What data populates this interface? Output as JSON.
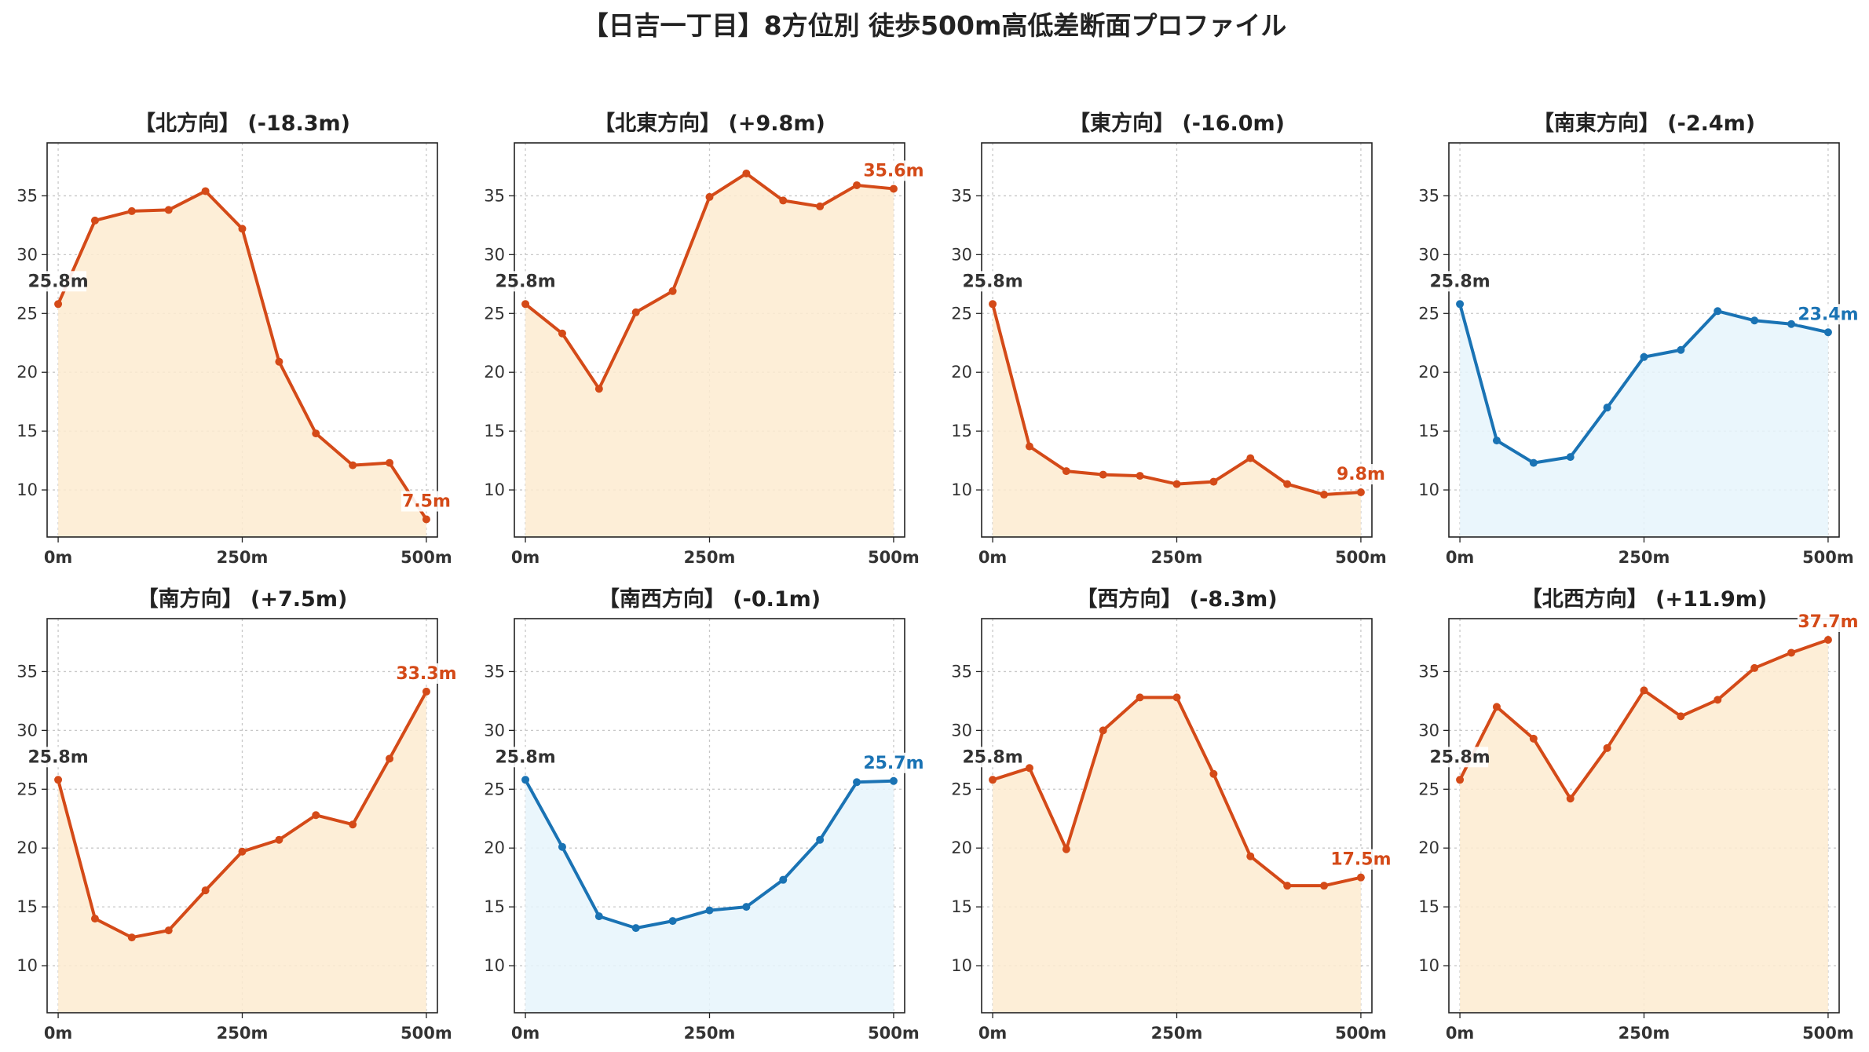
{
  "title": "【日吉一丁目】8方位別 徒歩500m高低差断面プロファイル",
  "colors": {
    "up_line": "#d44a18",
    "up_fill": "#fdebd0",
    "down_line": "#1a73b4",
    "down_fill": "#e6f4fb",
    "start_label": "#333333"
  },
  "chart_data": [
    {
      "type": "area",
      "title": "【北方向】 (-18.3m)",
      "x": [
        0,
        50,
        100,
        150,
        200,
        250,
        300,
        350,
        400,
        450,
        500
      ],
      "values": [
        25.8,
        32.9,
        33.7,
        33.8,
        35.4,
        32.2,
        20.9,
        14.8,
        12.1,
        12.3,
        7.5
      ],
      "trend": "up",
      "start_label": "25.8m",
      "end_label": "7.5m",
      "xticks": [
        "0m",
        "250m",
        "500m"
      ],
      "yticks": [
        10,
        15,
        20,
        25,
        30,
        35
      ],
      "ylim": [
        6,
        39.5
      ],
      "grid": true
    },
    {
      "type": "area",
      "title": "【北東方向】 (+9.8m)",
      "x": [
        0,
        50,
        100,
        150,
        200,
        250,
        300,
        350,
        400,
        450,
        500
      ],
      "values": [
        25.8,
        23.3,
        18.6,
        25.1,
        26.9,
        34.9,
        36.9,
        34.6,
        34.1,
        35.9,
        35.6
      ],
      "trend": "up",
      "start_label": "25.8m",
      "end_label": "35.6m",
      "xticks": [
        "0m",
        "250m",
        "500m"
      ],
      "yticks": [
        10,
        15,
        20,
        25,
        30,
        35
      ],
      "ylim": [
        6,
        39.5
      ],
      "grid": true
    },
    {
      "type": "area",
      "title": "【東方向】 (-16.0m)",
      "x": [
        0,
        50,
        100,
        150,
        200,
        250,
        300,
        350,
        400,
        450,
        500
      ],
      "values": [
        25.8,
        13.7,
        11.6,
        11.3,
        11.2,
        10.5,
        10.7,
        12.7,
        10.5,
        9.6,
        9.8
      ],
      "trend": "up",
      "start_label": "25.8m",
      "end_label": "9.8m",
      "xticks": [
        "0m",
        "250m",
        "500m"
      ],
      "yticks": [
        10,
        15,
        20,
        25,
        30,
        35
      ],
      "ylim": [
        6,
        39.5
      ],
      "grid": true
    },
    {
      "type": "area",
      "title": "【南東方向】 (-2.4m)",
      "x": [
        0,
        50,
        100,
        150,
        200,
        250,
        300,
        350,
        400,
        450,
        500
      ],
      "values": [
        25.8,
        14.2,
        12.3,
        12.8,
        17.0,
        21.3,
        21.9,
        25.2,
        24.4,
        24.1,
        23.4
      ],
      "trend": "down",
      "start_label": "25.8m",
      "end_label": "23.4m",
      "xticks": [
        "0m",
        "250m",
        "500m"
      ],
      "yticks": [
        10,
        15,
        20,
        25,
        30,
        35
      ],
      "ylim": [
        6,
        39.5
      ],
      "grid": true
    },
    {
      "type": "area",
      "title": "【南方向】 (+7.5m)",
      "x": [
        0,
        50,
        100,
        150,
        200,
        250,
        300,
        350,
        400,
        450,
        500
      ],
      "values": [
        25.8,
        14.0,
        12.4,
        13.0,
        16.4,
        19.7,
        20.7,
        22.8,
        22.0,
        27.6,
        33.3
      ],
      "trend": "up",
      "start_label": "25.8m",
      "end_label": "33.3m",
      "xticks": [
        "0m",
        "250m",
        "500m"
      ],
      "yticks": [
        10,
        15,
        20,
        25,
        30,
        35
      ],
      "ylim": [
        6,
        39.5
      ],
      "grid": true
    },
    {
      "type": "area",
      "title": "【南西方向】 (-0.1m)",
      "x": [
        0,
        50,
        100,
        150,
        200,
        250,
        300,
        350,
        400,
        450,
        500
      ],
      "values": [
        25.8,
        20.1,
        14.2,
        13.2,
        13.8,
        14.7,
        15.0,
        17.3,
        20.7,
        25.6,
        25.7
      ],
      "trend": "down",
      "start_label": "25.8m",
      "end_label": "25.7m",
      "xticks": [
        "0m",
        "250m",
        "500m"
      ],
      "yticks": [
        10,
        15,
        20,
        25,
        30,
        35
      ],
      "ylim": [
        6,
        39.5
      ],
      "grid": true
    },
    {
      "type": "area",
      "title": "【西方向】 (-8.3m)",
      "x": [
        0,
        50,
        100,
        150,
        200,
        250,
        300,
        350,
        400,
        450,
        500
      ],
      "values": [
        25.8,
        26.8,
        19.9,
        30.0,
        32.8,
        32.8,
        26.3,
        19.3,
        16.8,
        16.8,
        17.5
      ],
      "trend": "up",
      "start_label": "25.8m",
      "end_label": "17.5m",
      "xticks": [
        "0m",
        "250m",
        "500m"
      ],
      "yticks": [
        10,
        15,
        20,
        25,
        30,
        35
      ],
      "ylim": [
        6,
        39.5
      ],
      "grid": true
    },
    {
      "type": "area",
      "title": "【北西方向】 (+11.9m)",
      "x": [
        0,
        50,
        100,
        150,
        200,
        250,
        300,
        350,
        400,
        450,
        500
      ],
      "values": [
        25.8,
        32.0,
        29.3,
        24.2,
        28.5,
        33.4,
        31.2,
        32.6,
        35.3,
        36.6,
        37.7
      ],
      "trend": "up",
      "start_label": "25.8m",
      "end_label": "37.7m",
      "xticks": [
        "0m",
        "250m",
        "500m"
      ],
      "yticks": [
        10,
        15,
        20,
        25,
        30,
        35
      ],
      "ylim": [
        6,
        39.5
      ],
      "grid": true
    }
  ]
}
